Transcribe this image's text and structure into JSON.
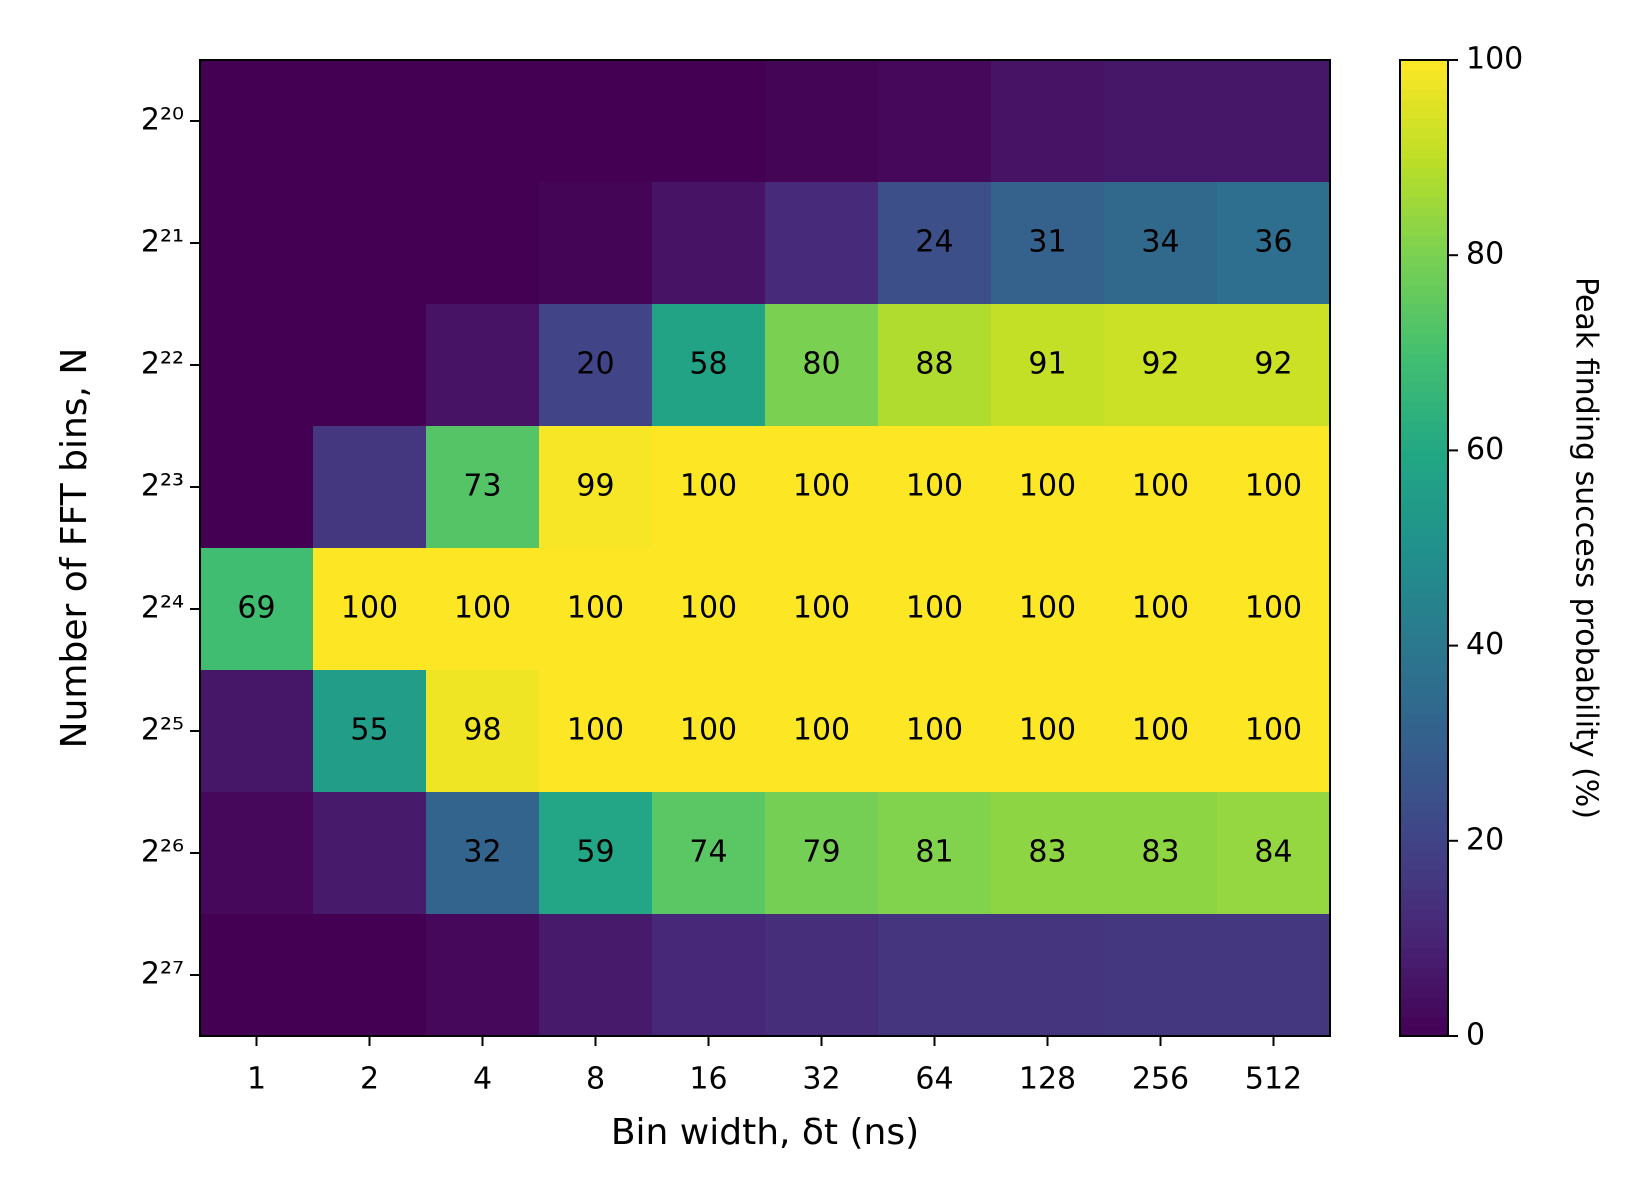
{
  "chart_data": {
    "type": "heatmap",
    "x_label": "Bin width, δt (ns)",
    "y_label": "Number of FFT bins, N",
    "categories": [
      "1",
      "2",
      "4",
      "8",
      "16",
      "32",
      "64",
      "128",
      "256",
      "512"
    ],
    "y_categories": [
      "2²⁰",
      "2²¹",
      "2²²",
      "2²³",
      "2²⁴",
      "2²⁵",
      "2²⁶",
      "2²⁷"
    ],
    "values": [
      [
        0,
        0,
        0,
        0,
        0,
        1,
        2,
        5,
        6,
        6
      ],
      [
        0,
        0,
        0,
        1,
        5,
        12,
        24,
        31,
        34,
        36
      ],
      [
        0,
        0,
        5,
        20,
        58,
        80,
        88,
        91,
        92,
        92
      ],
      [
        0,
        16,
        73,
        99,
        100,
        100,
        100,
        100,
        100,
        100
      ],
      [
        69,
        100,
        100,
        100,
        100,
        100,
        100,
        100,
        100,
        100
      ],
      [
        6,
        55,
        98,
        100,
        100,
        100,
        100,
        100,
        100,
        100
      ],
      [
        2,
        7,
        32,
        59,
        74,
        79,
        81,
        83,
        83,
        84
      ],
      [
        0,
        0,
        2,
        7,
        11,
        13,
        15,
        15,
        16,
        16
      ]
    ],
    "value_labels": [
      [
        null,
        null,
        null,
        null,
        null,
        null,
        null,
        null,
        null,
        null
      ],
      [
        null,
        null,
        null,
        null,
        null,
        null,
        "24",
        "31",
        "34",
        "36"
      ],
      [
        null,
        null,
        null,
        "20",
        "58",
        "80",
        "88",
        "91",
        "92",
        "92"
      ],
      [
        null,
        null,
        "73",
        "99",
        "100",
        "100",
        "100",
        "100",
        "100",
        "100"
      ],
      [
        "69",
        "100",
        "100",
        "100",
        "100",
        "100",
        "100",
        "100",
        "100",
        "100"
      ],
      [
        null,
        "55",
        "98",
        "100",
        "100",
        "100",
        "100",
        "100",
        "100",
        "100"
      ],
      [
        null,
        null,
        "32",
        "59",
        "74",
        "79",
        "81",
        "83",
        "83",
        "84"
      ],
      [
        null,
        null,
        null,
        null,
        null,
        null,
        null,
        null,
        null,
        null
      ]
    ],
    "colormap": "viridis",
    "colorbar": {
      "label": "Peak finding success probability (%)",
      "lim": [
        0,
        100
      ],
      "ticks": [
        0,
        20,
        40,
        60,
        80,
        100
      ]
    }
  }
}
